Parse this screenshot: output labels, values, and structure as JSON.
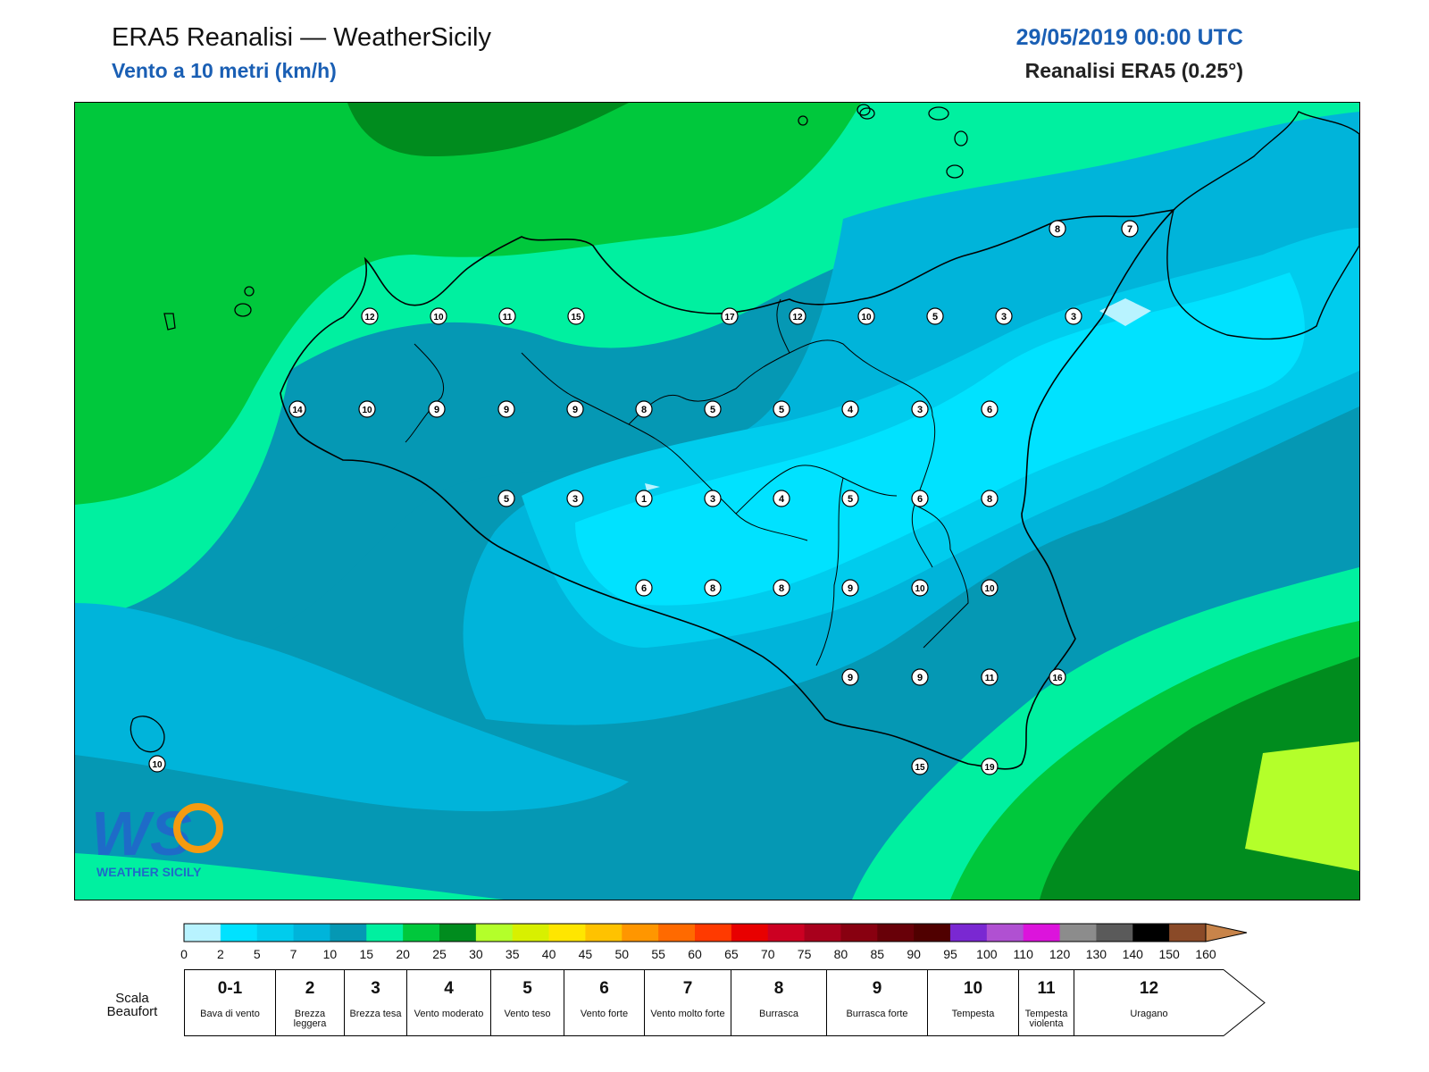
{
  "header": {
    "title": "ERA5 Reanalisi — WeatherSicily",
    "subtitle": "Vento a 10 metri (km/h)",
    "datetime": "29/05/2019 00:00 UTC",
    "source": "Reanalisi ERA5 (0.25°)"
  },
  "station_values": [
    [
      "12",
      "10",
      "11",
      "15",
      "17",
      "12",
      "10",
      "5",
      "3",
      "3"
    ],
    [
      "14",
      "10",
      "9",
      "9",
      "9",
      "8",
      "5",
      "5",
      "4",
      "3",
      "6"
    ],
    [
      "5",
      "3",
      "1",
      "3",
      "4",
      "5",
      "6",
      "8"
    ],
    [
      "6",
      "8",
      "8",
      "9",
      "10",
      "10"
    ],
    [
      "9",
      "9",
      "11",
      "16"
    ],
    [
      "15",
      "19"
    ],
    [
      "8",
      "7"
    ],
    [
      "10"
    ]
  ],
  "colorbar": {
    "ticks": [
      "0",
      "2",
      "5",
      "7",
      "10",
      "15",
      "20",
      "25",
      "30",
      "35",
      "40",
      "45",
      "50",
      "55",
      "60",
      "65",
      "70",
      "75",
      "80",
      "85",
      "90",
      "95",
      "100",
      "110",
      "120",
      "130",
      "140",
      "150",
      "160"
    ],
    "colors": [
      "#b8f3ff",
      "#00e2ff",
      "#00cced",
      "#00b4da",
      "#0598b4",
      "#00f0a0",
      "#00c83c",
      "#008c1e",
      "#b4ff2a",
      "#d8f000",
      "#ffe600",
      "#ffc200",
      "#ff9600",
      "#ff6a00",
      "#ff3a00",
      "#e80000",
      "#cc0022",
      "#a8001c",
      "#880010",
      "#680008",
      "#500000",
      "#7a28d2",
      "#b050d2",
      "#dc14dc",
      "#8c8c8c",
      "#5a5a5a",
      "#000000",
      "#8a4a28",
      "#c8844a"
    ]
  },
  "beaufort": {
    "label": "Scala Beaufort",
    "levels": [
      {
        "num": "0-1",
        "desc": "Bava di vento"
      },
      {
        "num": "2",
        "desc": "Brezza leggera"
      },
      {
        "num": "3",
        "desc": "Brezza tesa"
      },
      {
        "num": "4",
        "desc": "Vento moderato"
      },
      {
        "num": "5",
        "desc": "Vento teso"
      },
      {
        "num": "6",
        "desc": "Vento forte"
      },
      {
        "num": "7",
        "desc": "Vento molto forte"
      },
      {
        "num": "8",
        "desc": "Burrasca"
      },
      {
        "num": "9",
        "desc": "Burrasca forte"
      },
      {
        "num": "10",
        "desc": "Tempesta"
      },
      {
        "num": "11",
        "desc": "Tempesta violenta"
      },
      {
        "num": "12",
        "desc": "Uragano"
      }
    ]
  },
  "logo": {
    "text": "WEATHER SICILY",
    "mark": "WS"
  }
}
